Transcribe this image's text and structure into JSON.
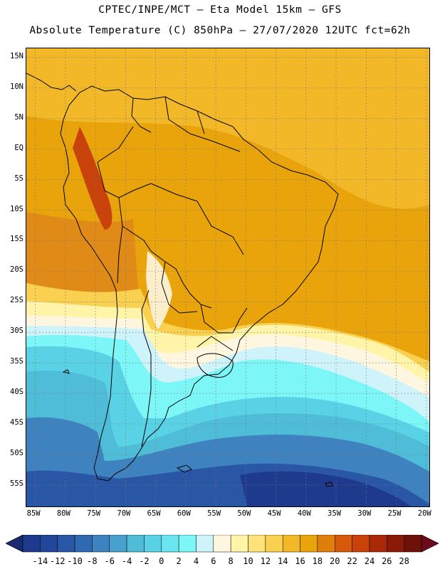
{
  "header": {
    "line1": "CPTEC/INPE/MCT –  Eta Model 15km – GFS",
    "line2": "Absolute Temperature (C) 850hPa – 27/07/2020 12UTC fct=62h"
  },
  "map": {
    "lat_labels": [
      "15N",
      "10N",
      "5N",
      "EQ",
      "5S",
      "10S",
      "15S",
      "20S",
      "25S",
      "30S",
      "35S",
      "40S",
      "45S",
      "50S",
      "55S"
    ],
    "lon_labels": [
      "85W",
      "80W",
      "75W",
      "70W",
      "65W",
      "60W",
      "55W",
      "50W",
      "45W",
      "40W",
      "35W",
      "30W",
      "25W",
      "20W"
    ],
    "lat_values": [
      15,
      10,
      5,
      0,
      -5,
      -10,
      -15,
      -20,
      -25,
      -30,
      -35,
      -40,
      -45,
      -50,
      -55
    ],
    "lon_values": [
      -85,
      -80,
      -75,
      -70,
      -65,
      -60,
      -55,
      -50,
      -45,
      -40,
      -35,
      -30,
      -25,
      -20
    ],
    "extent": {
      "lon_min": -86.5,
      "lon_max": -19.5,
      "lat_min": -58.5,
      "lat_max": 16.5
    }
  },
  "colorbar": {
    "ticks": [
      "-14",
      "-12",
      "-10",
      "-8",
      "-6",
      "-4",
      "-2",
      "0",
      "2",
      "4",
      "6",
      "8",
      "10",
      "12",
      "14",
      "16",
      "18",
      "20",
      "22",
      "24",
      "26",
      "28"
    ],
    "colors": [
      "#1e3a8c",
      "#22469a",
      "#2a56a6",
      "#3168b2",
      "#3e82c0",
      "#4aa0cc",
      "#4fbcd8",
      "#58d2e4",
      "#6ae6f0",
      "#7df6f8",
      "#cff3fa",
      "#fff6e0",
      "#fff4a8",
      "#ffe27a",
      "#fad050",
      "#f2b828",
      "#e8a40a",
      "#e07e0c",
      "#d65a0a",
      "#c8420a",
      "#a82808",
      "#8a1a08",
      "#6e1208"
    ],
    "low_color": "#1a2a70",
    "high_color": "#6a0a1a"
  }
}
